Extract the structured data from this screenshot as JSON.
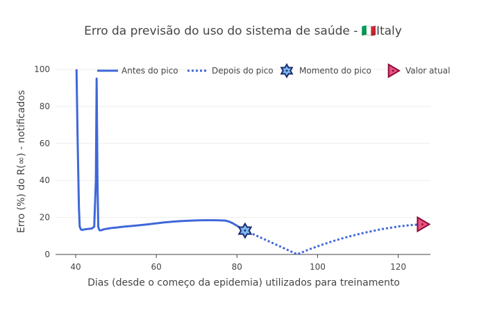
{
  "chart_data": {
    "type": "line",
    "title": "Erro da previsão do uso do sistema de saúde - 🇮🇹Italy",
    "xlabel": "Dias (desde o começo da epidemia) utilizados para treinamento",
    "ylabel": "Erro (%) do R(∞) - notificados",
    "xlim": [
      35,
      128
    ],
    "ylim": [
      0,
      100
    ],
    "x_ticks": [
      40,
      60,
      80,
      100,
      120
    ],
    "y_ticks": [
      0,
      20,
      40,
      60,
      80,
      100
    ],
    "grid": true,
    "legend_position": "top",
    "series": [
      {
        "name": "Antes do pico",
        "style": "solid",
        "color": "#3f67d9",
        "x": [
          40.2,
          40.5,
          40.8,
          41.0,
          41.3,
          41.7,
          42,
          43,
          44,
          44.6,
          45.0,
          45.2,
          45.4,
          45.6,
          45.8,
          46,
          46.5,
          47,
          48,
          49,
          50,
          51,
          52,
          54,
          56,
          58,
          60,
          62,
          64,
          66,
          68,
          70,
          72,
          74,
          76,
          77,
          78,
          79,
          80,
          81,
          82
        ],
        "y": [
          100,
          60,
          25,
          15,
          13.5,
          13.2,
          13.5,
          13.8,
          14.0,
          15,
          40,
          95,
          40,
          15,
          13.5,
          13,
          13.2,
          13.6,
          14.0,
          14.3,
          14.5,
          14.8,
          15.0,
          15.4,
          15.8,
          16.3,
          16.8,
          17.3,
          17.7,
          18.0,
          18.2,
          18.4,
          18.5,
          18.5,
          18.4,
          18.3,
          17.8,
          16.8,
          15.5,
          14.2,
          12.9
        ]
      },
      {
        "name": "Depois do pico",
        "style": "dotted",
        "color": "#3f67d9",
        "x": [
          82,
          84,
          86,
          88,
          90,
          92,
          94,
          95,
          96,
          98,
          100,
          102,
          104,
          106,
          108,
          110,
          112,
          114,
          116,
          118,
          120,
          122,
          124,
          126
        ],
        "y": [
          12.9,
          11.0,
          9.0,
          7.0,
          5.0,
          3.0,
          1.0,
          0.1,
          1.0,
          2.8,
          4.4,
          5.9,
          7.3,
          8.6,
          9.8,
          10.9,
          11.9,
          12.8,
          13.7,
          14.4,
          15.1,
          15.6,
          16.0,
          16.3
        ]
      }
    ],
    "markers": [
      {
        "name": "Momento do pico",
        "symbol": "hexagram",
        "x": 82,
        "y": 12.9,
        "fill": "#7ab7ef",
        "stroke": "#1a2a6c"
      },
      {
        "name": "Valor atual",
        "symbol": "triangle-right",
        "x": 126,
        "y": 16.3,
        "fill": "#e8547e",
        "stroke": "#8b0a3a"
      }
    ]
  }
}
